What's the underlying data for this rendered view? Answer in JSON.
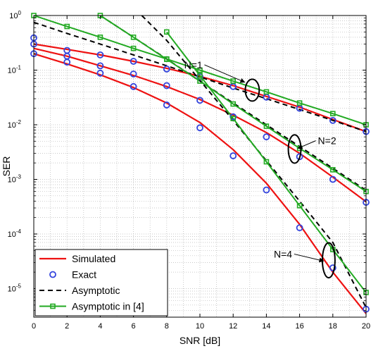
{
  "chart_data": {
    "type": "line",
    "title": "",
    "xlabel": "SNR [dB]",
    "ylabel": "SER",
    "xlim": [
      0,
      20
    ],
    "ylim": [
      3e-06,
      1
    ],
    "yscale": "log",
    "grid": true,
    "legend_position": "bottom-left",
    "x_ticks": [
      "0",
      "2",
      "4",
      "6",
      "8",
      "10",
      "12",
      "14",
      "16",
      "18",
      "20"
    ],
    "y_ticks": [
      {
        "base": "10",
        "exp": "0",
        "value": 1
      },
      {
        "base": "10",
        "exp": "-1",
        "value": 0.1
      },
      {
        "base": "10",
        "exp": "-2",
        "value": 0.01
      },
      {
        "base": "10",
        "exp": "-3",
        "value": 0.001
      },
      {
        "base": "10",
        "exp": "-4",
        "value": 0.0001
      },
      {
        "base": "10",
        "exp": "-5",
        "value": 1e-05
      }
    ],
    "legend": [
      {
        "label": "Simulated",
        "style": "simulated"
      },
      {
        "label": "Exact",
        "style": "exact"
      },
      {
        "label": "Asymptotic",
        "style": "asymptotic"
      },
      {
        "label": "Asymptotic in [4]",
        "style": "asym4"
      }
    ],
    "colors": {
      "simulated": "#ee1111",
      "exact": "#3344dd",
      "asymptotic": "#000000",
      "asym4": "#22aa22",
      "grid": "#b8b8b8"
    },
    "series": [
      {
        "style": "simulated",
        "group": "N=1",
        "x": [
          0,
          2,
          4,
          6,
          8,
          10,
          12,
          14,
          16,
          18,
          20
        ],
        "y": [
          0.3,
          0.24,
          0.19,
          0.145,
          0.108,
          0.077,
          0.052,
          0.033,
          0.021,
          0.0125,
          0.0075
        ]
      },
      {
        "style": "exact",
        "group": "N=1",
        "x": [
          0,
          2,
          4,
          6,
          8,
          10,
          12,
          14,
          16,
          18,
          20
        ],
        "y": [
          0.39,
          0.23,
          0.19,
          0.145,
          0.105,
          0.076,
          0.05,
          0.032,
          0.02,
          0.012,
          0.0075
        ]
      },
      {
        "style": "asymptotic",
        "group": "N=1",
        "x": [
          0,
          2,
          4,
          6,
          8,
          10,
          12,
          14,
          16,
          18,
          20
        ],
        "y": [
          0.75,
          0.47,
          0.3,
          0.19,
          0.12,
          0.075,
          0.047,
          0.03,
          0.019,
          0.012,
          0.0075
        ]
      },
      {
        "style": "asym4",
        "group": "N=1",
        "x": [
          0,
          2,
          4,
          6,
          8,
          10,
          12,
          14,
          16,
          18,
          20
        ],
        "y": [
          1.0,
          0.63,
          0.4,
          0.25,
          0.16,
          0.1,
          0.063,
          0.04,
          0.025,
          0.016,
          0.01
        ]
      },
      {
        "style": "simulated",
        "group": "N=2",
        "x": [
          0,
          2,
          4,
          6,
          8,
          10,
          12,
          14,
          16,
          18,
          20
        ],
        "y": [
          0.25,
          0.18,
          0.12,
          0.08,
          0.05,
          0.029,
          0.015,
          0.0072,
          0.003,
          0.0011,
          0.00039
        ]
      },
      {
        "style": "exact",
        "group": "N=2",
        "x": [
          0,
          2,
          4,
          6,
          8,
          10,
          12,
          14,
          16,
          18,
          20
        ],
        "y": [
          0.3,
          0.18,
          0.12,
          0.085,
          0.052,
          0.028,
          0.014,
          0.006,
          0.0026,
          0.001,
          0.00038
        ]
      },
      {
        "style": "asymptotic",
        "group": "N=2",
        "x": [
          4,
          6,
          8,
          10,
          12,
          14,
          16,
          18,
          20
        ],
        "y": [
          1.0,
          0.4,
          0.16,
          0.063,
          0.025,
          0.01,
          0.004,
          0.0016,
          0.00063
        ]
      },
      {
        "style": "asym4",
        "group": "N=2",
        "x": [
          4,
          6,
          8,
          10,
          12,
          14,
          16,
          18,
          20
        ],
        "y": [
          1.0,
          0.4,
          0.158,
          0.063,
          0.024,
          0.0094,
          0.0037,
          0.0015,
          0.0006
        ]
      },
      {
        "style": "simulated",
        "group": "N=4",
        "x": [
          0,
          2,
          4,
          6,
          8,
          10,
          12,
          14,
          16,
          18,
          20
        ],
        "y": [
          0.2,
          0.13,
          0.082,
          0.048,
          0.025,
          0.011,
          0.0035,
          0.00085,
          0.00015,
          2e-05,
          3.5e-06
        ]
      },
      {
        "style": "exact",
        "group": "N=4",
        "x": [
          0,
          2,
          4,
          6,
          8,
          10,
          12,
          14,
          16,
          18,
          20
        ],
        "y": [
          0.2,
          0.14,
          0.088,
          0.05,
          0.023,
          0.0088,
          0.0027,
          0.00064,
          0.00013,
          2.4e-05,
          4.2e-06
        ]
      },
      {
        "style": "asymptotic",
        "group": "N=4",
        "x": [
          6.5,
          8,
          10,
          12,
          14,
          16,
          18,
          20
        ],
        "y": [
          1.0,
          0.35,
          0.065,
          0.012,
          0.0022,
          0.0004,
          7e-05,
          4.5e-06
        ]
      },
      {
        "style": "asym4",
        "group": "N=4",
        "x": [
          8,
          10,
          12,
          14,
          16,
          18,
          20
        ],
        "y": [
          0.5,
          0.08,
          0.013,
          0.0021,
          0.00033,
          5.2e-05,
          8.5e-06
        ]
      }
    ],
    "annotations": [
      {
        "text": "N=1",
        "label_x": 9.05,
        "label_y": 0.108,
        "arrow_x": 12.7,
        "arrow_y": 0.06,
        "ellipse_x": 13.15,
        "ellipse_y": 0.043,
        "ellipse_rx_db": 0.42,
        "ellipse_ry_decades": 0.2
      },
      {
        "text": "N=2",
        "label_x": 17.1,
        "label_y": 0.0044,
        "arrow_x": 15.9,
        "arrow_y": 0.0037,
        "ellipse_x": 15.7,
        "ellipse_y": 0.0036,
        "ellipse_rx_db": 0.38,
        "ellipse_ry_decades": 0.26
      },
      {
        "text": "N=4",
        "label_x": 14.45,
        "label_y": 3.7e-05,
        "arrow_x": 17.45,
        "arrow_y": 3.2e-05,
        "ellipse_x": 17.75,
        "ellipse_y": 3.3e-05,
        "ellipse_rx_db": 0.38,
        "ellipse_ry_decades": 0.32
      }
    ]
  }
}
